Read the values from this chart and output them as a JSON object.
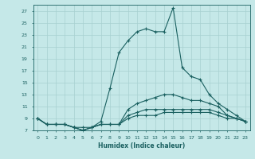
{
  "title": "",
  "xlabel": "Humidex (Indice chaleur)",
  "bg_color": "#c5e8e8",
  "line_color": "#1a6060",
  "grid_color": "#a8d0d0",
  "xlim": [
    -0.5,
    23.5
  ],
  "ylim": [
    7,
    28
  ],
  "yticks": [
    7,
    9,
    11,
    13,
    15,
    17,
    19,
    21,
    23,
    25,
    27
  ],
  "xticks": [
    0,
    1,
    2,
    3,
    4,
    5,
    6,
    7,
    8,
    9,
    10,
    11,
    12,
    13,
    14,
    15,
    16,
    17,
    18,
    19,
    20,
    21,
    22,
    23
  ],
  "series": [
    {
      "x": [
        0,
        1,
        2,
        3,
        4,
        5,
        6,
        7,
        8,
        9,
        10,
        11,
        12,
        13,
        14,
        15,
        16,
        17,
        18,
        19,
        20,
        21,
        22,
        23
      ],
      "y": [
        9,
        8,
        8,
        8,
        7.5,
        7,
        7.5,
        8,
        8,
        8,
        9,
        9.5,
        9.5,
        9.5,
        10,
        10,
        10,
        10,
        10,
        10,
        9.5,
        9,
        9,
        8.5
      ]
    },
    {
      "x": [
        0,
        1,
        2,
        3,
        4,
        5,
        6,
        7,
        8,
        9,
        10,
        11,
        12,
        13,
        14,
        15,
        16,
        17,
        18,
        19,
        20,
        21,
        22,
        23
      ],
      "y": [
        9,
        8,
        8,
        8,
        7.5,
        7,
        7.5,
        8,
        8,
        8,
        9.5,
        10,
        10.5,
        10.5,
        10.5,
        10.5,
        10.5,
        10.5,
        10.5,
        10.5,
        10,
        9.5,
        9,
        8.5
      ]
    },
    {
      "x": [
        0,
        1,
        2,
        3,
        4,
        5,
        6,
        7,
        8,
        9,
        10,
        11,
        12,
        13,
        14,
        15,
        16,
        17,
        18,
        19,
        20,
        21,
        22,
        23
      ],
      "y": [
        9,
        8,
        8,
        8,
        7.5,
        7.5,
        7.5,
        8,
        8,
        8,
        10.5,
        11.5,
        12,
        12.5,
        13,
        13,
        12.5,
        12,
        12,
        11.5,
        11,
        9.5,
        9,
        8.5
      ]
    },
    {
      "x": [
        0,
        1,
        2,
        3,
        4,
        5,
        6,
        7,
        8,
        9,
        10,
        11,
        12,
        13,
        14,
        15,
        16,
        17,
        18,
        19,
        20,
        21,
        22,
        23
      ],
      "y": [
        9,
        8,
        8,
        8,
        7.5,
        7,
        7.5,
        8.5,
        14,
        20,
        22,
        23.5,
        24,
        23.5,
        23.5,
        27.5,
        17.5,
        16,
        15.5,
        13,
        11.5,
        10.5,
        9.5,
        8.5
      ]
    }
  ]
}
